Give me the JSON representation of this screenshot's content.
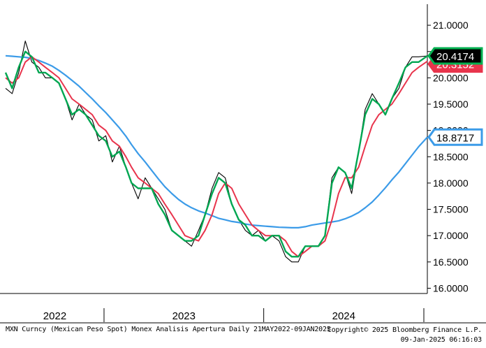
{
  "footer": {
    "description": "MXN Curncy (Mexican Peso Spot) Monex Analisis Apertura  Daily 21MAY2022-09JAN2025",
    "copyright": "Copyright© 2025 Bloomberg Finance L.P.",
    "timestamp": "09-Jan-2025 06:16:03"
  },
  "colors": {
    "price": "#000000",
    "ma_short": "#00a651",
    "ma_mid": "#e8344c",
    "ma_long": "#3b9be8",
    "badge_last": "#00b050",
    "badge_mid": "#e8344c",
    "badge_long": "#3b9be8"
  },
  "chart_data": {
    "type": "line",
    "title": "",
    "xlabel": "",
    "ylabel": "",
    "ylim": [
      15.9,
      21.4
    ],
    "yticks": [
      "21.0000",
      "20.5000",
      "20.0000",
      "19.5000",
      "19.0000",
      "18.5000",
      "18.0000",
      "17.5000",
      "17.0000",
      "16.5000",
      "16.0000"
    ],
    "xticks": [
      "2022",
      "2023",
      "2024"
    ],
    "x_range": [
      "2022-05-21",
      "2025-01-09"
    ],
    "last_value_labels": [
      {
        "text": "20.4174",
        "series": "ma_short",
        "value": 20.4174
      },
      {
        "text": "20.3152",
        "series": "ma_mid",
        "value": 20.3152
      },
      {
        "text": "18.8717",
        "series": "ma_long",
        "value": 18.8717
      }
    ],
    "series": [
      {
        "key": "price",
        "x": [
          "2022-05-21",
          "2022-06-05",
          "2022-06-20",
          "2022-07-05",
          "2022-07-20",
          "2022-08-05",
          "2022-08-20",
          "2022-09-05",
          "2022-09-20",
          "2022-10-05",
          "2022-10-20",
          "2022-11-05",
          "2022-11-20",
          "2022-12-05",
          "2022-12-20",
          "2023-01-05",
          "2023-01-20",
          "2023-02-05",
          "2023-02-20",
          "2023-03-05",
          "2023-03-20",
          "2023-04-05",
          "2023-04-20",
          "2023-05-05",
          "2023-05-20",
          "2023-06-05",
          "2023-06-20",
          "2023-07-05",
          "2023-07-20",
          "2023-08-05",
          "2023-08-20",
          "2023-09-05",
          "2023-09-20",
          "2023-10-05",
          "2023-10-20",
          "2023-11-05",
          "2023-11-20",
          "2023-12-05",
          "2023-12-20",
          "2024-01-05",
          "2024-01-20",
          "2024-02-05",
          "2024-02-20",
          "2024-03-05",
          "2024-03-20",
          "2024-04-05",
          "2024-04-20",
          "2024-05-05",
          "2024-05-20",
          "2024-06-05",
          "2024-06-20",
          "2024-07-05",
          "2024-07-20",
          "2024-08-05",
          "2024-08-20",
          "2024-09-05",
          "2024-09-20",
          "2024-10-05",
          "2024-10-20",
          "2024-11-05",
          "2024-11-20",
          "2024-12-05",
          "2024-12-20",
          "2025-01-09"
        ],
        "values": [
          19.8,
          19.7,
          20.1,
          20.7,
          20.3,
          20.2,
          20.0,
          20.0,
          19.9,
          19.6,
          19.2,
          19.5,
          19.3,
          19.2,
          18.8,
          18.9,
          18.4,
          18.7,
          18.3,
          18.0,
          17.7,
          18.1,
          17.9,
          17.7,
          17.5,
          17.1,
          17.0,
          16.9,
          16.8,
          17.1,
          17.4,
          17.9,
          18.2,
          18.1,
          17.6,
          17.3,
          17.1,
          17.0,
          17.1,
          16.9,
          17.0,
          16.9,
          16.6,
          16.5,
          16.5,
          16.8,
          16.8,
          16.8,
          17.0,
          18.1,
          18.3,
          18.2,
          17.8,
          18.6,
          19.4,
          19.7,
          19.5,
          19.3,
          19.6,
          19.8,
          20.2,
          20.4,
          20.4,
          20.4174
        ]
      },
      {
        "key": "ma_short",
        "x": [
          "2022-05-21",
          "2022-06-05",
          "2022-06-20",
          "2022-07-05",
          "2022-07-20",
          "2022-08-05",
          "2022-08-20",
          "2022-09-05",
          "2022-09-20",
          "2022-10-05",
          "2022-10-20",
          "2022-11-05",
          "2022-11-20",
          "2022-12-05",
          "2022-12-20",
          "2023-01-05",
          "2023-01-20",
          "2023-02-05",
          "2023-02-20",
          "2023-03-05",
          "2023-03-20",
          "2023-04-05",
          "2023-04-20",
          "2023-05-05",
          "2023-05-20",
          "2023-06-05",
          "2023-06-20",
          "2023-07-05",
          "2023-07-20",
          "2023-08-05",
          "2023-08-20",
          "2023-09-05",
          "2023-09-20",
          "2023-10-05",
          "2023-10-20",
          "2023-11-05",
          "2023-11-20",
          "2023-12-05",
          "2023-12-20",
          "2024-01-05",
          "2024-01-20",
          "2024-02-05",
          "2024-02-20",
          "2024-03-05",
          "2024-03-20",
          "2024-04-05",
          "2024-04-20",
          "2024-05-05",
          "2024-05-20",
          "2024-06-05",
          "2024-06-20",
          "2024-07-05",
          "2024-07-20",
          "2024-08-05",
          "2024-08-20",
          "2024-09-05",
          "2024-09-20",
          "2024-10-05",
          "2024-10-20",
          "2024-11-05",
          "2024-11-20",
          "2024-12-05",
          "2024-12-20",
          "2025-01-09"
        ],
        "values": [
          20.1,
          19.8,
          20.2,
          20.5,
          20.4,
          20.1,
          20.1,
          20.0,
          19.9,
          19.6,
          19.3,
          19.4,
          19.3,
          19.1,
          18.9,
          18.8,
          18.5,
          18.6,
          18.3,
          18.0,
          17.9,
          17.9,
          17.9,
          17.6,
          17.4,
          17.1,
          17.0,
          16.9,
          16.9,
          17.0,
          17.4,
          17.8,
          18.1,
          18.0,
          17.6,
          17.3,
          17.2,
          17.0,
          17.0,
          16.9,
          17.0,
          17.0,
          16.7,
          16.6,
          16.6,
          16.8,
          16.8,
          16.8,
          17.0,
          18.0,
          18.3,
          18.2,
          17.9,
          18.6,
          19.3,
          19.6,
          19.5,
          19.3,
          19.6,
          19.9,
          20.2,
          20.3,
          20.3,
          20.4174
        ]
      },
      {
        "key": "ma_mid",
        "x": [
          "2022-05-21",
          "2022-06-05",
          "2022-06-20",
          "2022-07-05",
          "2022-07-20",
          "2022-08-05",
          "2022-08-20",
          "2022-09-05",
          "2022-09-20",
          "2022-10-05",
          "2022-10-20",
          "2022-11-05",
          "2022-11-20",
          "2022-12-05",
          "2022-12-20",
          "2023-01-05",
          "2023-01-20",
          "2023-02-05",
          "2023-02-20",
          "2023-03-05",
          "2023-03-20",
          "2023-04-05",
          "2023-04-20",
          "2023-05-05",
          "2023-05-20",
          "2023-06-05",
          "2023-06-20",
          "2023-07-05",
          "2023-07-20",
          "2023-08-05",
          "2023-08-20",
          "2023-09-05",
          "2023-09-20",
          "2023-10-05",
          "2023-10-20",
          "2023-11-05",
          "2023-11-20",
          "2023-12-05",
          "2023-12-20",
          "2024-01-05",
          "2024-01-20",
          "2024-02-05",
          "2024-02-20",
          "2024-03-05",
          "2024-03-20",
          "2024-04-05",
          "2024-04-20",
          "2024-05-05",
          "2024-05-20",
          "2024-06-05",
          "2024-06-20",
          "2024-07-05",
          "2024-07-20",
          "2024-08-05",
          "2024-08-20",
          "2024-09-05",
          "2024-09-20",
          "2024-10-05",
          "2024-10-20",
          "2024-11-05",
          "2024-11-20",
          "2024-12-05",
          "2024-12-20",
          "2025-01-09"
        ],
        "values": [
          20.0,
          19.9,
          20.0,
          20.3,
          20.4,
          20.3,
          20.2,
          20.1,
          20.0,
          19.8,
          19.6,
          19.5,
          19.4,
          19.3,
          19.1,
          19.0,
          18.8,
          18.7,
          18.5,
          18.3,
          18.1,
          18.0,
          17.9,
          17.8,
          17.6,
          17.4,
          17.2,
          17.0,
          16.95,
          16.9,
          17.1,
          17.4,
          17.8,
          18.0,
          17.9,
          17.6,
          17.4,
          17.2,
          17.1,
          17.0,
          17.0,
          17.0,
          16.9,
          16.7,
          16.6,
          16.7,
          16.8,
          16.8,
          16.9,
          17.3,
          17.8,
          18.1,
          18.1,
          18.3,
          18.7,
          19.1,
          19.3,
          19.4,
          19.5,
          19.7,
          19.9,
          20.1,
          20.2,
          20.3152
        ]
      },
      {
        "key": "ma_long",
        "x": [
          "2022-05-21",
          "2022-06-05",
          "2022-06-20",
          "2022-07-05",
          "2022-07-20",
          "2022-08-05",
          "2022-08-20",
          "2022-09-05",
          "2022-09-20",
          "2022-10-05",
          "2022-10-20",
          "2022-11-05",
          "2022-11-20",
          "2022-12-05",
          "2022-12-20",
          "2023-01-05",
          "2023-01-20",
          "2023-02-05",
          "2023-02-20",
          "2023-03-05",
          "2023-03-20",
          "2023-04-05",
          "2023-04-20",
          "2023-05-05",
          "2023-05-20",
          "2023-06-05",
          "2023-06-20",
          "2023-07-05",
          "2023-07-20",
          "2023-08-05",
          "2023-08-20",
          "2023-09-05",
          "2023-09-20",
          "2023-10-05",
          "2023-10-20",
          "2023-11-05",
          "2023-11-20",
          "2023-12-05",
          "2023-12-20",
          "2024-01-05",
          "2024-01-20",
          "2024-02-05",
          "2024-02-20",
          "2024-03-05",
          "2024-03-20",
          "2024-04-05",
          "2024-04-20",
          "2024-05-05",
          "2024-05-20",
          "2024-06-05",
          "2024-06-20",
          "2024-07-05",
          "2024-07-20",
          "2024-08-05",
          "2024-08-20",
          "2024-09-05",
          "2024-09-20",
          "2024-10-05",
          "2024-10-20",
          "2024-11-05",
          "2024-11-20",
          "2024-12-05",
          "2024-12-20",
          "2025-01-09"
        ],
        "values": [
          20.42,
          20.41,
          20.4,
          20.39,
          20.37,
          20.33,
          20.28,
          20.22,
          20.14,
          20.05,
          19.95,
          19.84,
          19.72,
          19.6,
          19.47,
          19.34,
          19.2,
          19.05,
          18.89,
          18.73,
          18.56,
          18.4,
          18.24,
          18.08,
          17.93,
          17.8,
          17.69,
          17.6,
          17.53,
          17.47,
          17.43,
          17.38,
          17.33,
          17.3,
          17.27,
          17.25,
          17.22,
          17.2,
          17.19,
          17.18,
          17.17,
          17.16,
          17.155,
          17.15,
          17.15,
          17.17,
          17.2,
          17.22,
          17.24,
          17.26,
          17.28,
          17.32,
          17.37,
          17.44,
          17.53,
          17.64,
          17.77,
          17.91,
          18.06,
          18.21,
          18.37,
          18.53,
          18.69,
          18.8717
        ]
      }
    ]
  }
}
